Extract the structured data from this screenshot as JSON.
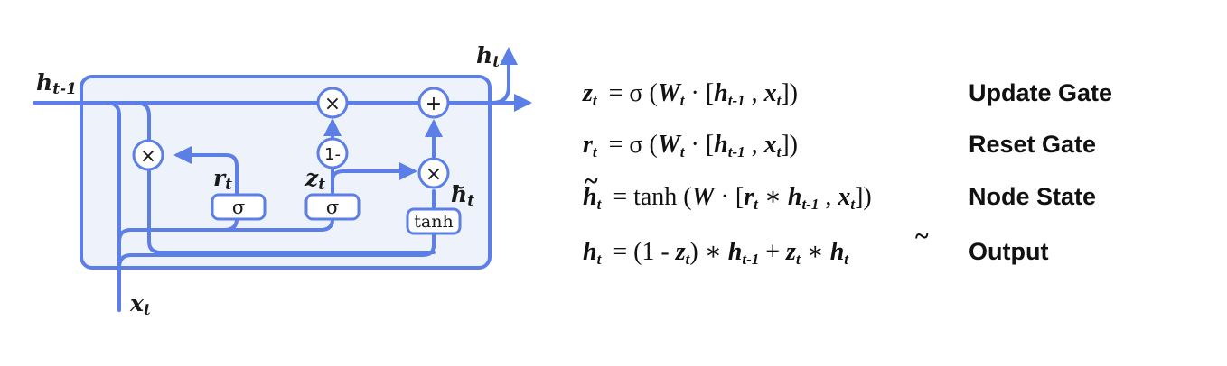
{
  "diagram": {
    "labels": {
      "h_prev": "h",
      "h_prev_sub": "t-1",
      "h_out": "h",
      "h_out_sub": "t",
      "x_in": "x",
      "x_in_sub": "t",
      "r": "r",
      "r_sub": "t",
      "z": "z",
      "z_sub": "t",
      "h_tilde": "h",
      "h_tilde_sub": "t",
      "tilde": "~"
    },
    "nodes": {
      "mult_reset": "×",
      "mult_update": "×",
      "plus": "+",
      "one_minus": "1-",
      "mult_candidate": "×",
      "sigma_r": "σ",
      "sigma_z": "σ",
      "tanh": "tanh"
    },
    "colors": {
      "line": "#5b7fe6",
      "cell_fill": "#eef2fb"
    }
  },
  "equations": [
    {
      "lhs": "z",
      "lhs_sub": "t",
      "parts": [
        "= σ (",
        "W",
        "t",
        " · [",
        "h",
        "t-1",
        " , ",
        "x",
        "t",
        "])"
      ],
      "gate": "Update Gate"
    },
    {
      "lhs": "r",
      "lhs_sub": "t",
      "parts": [
        "= σ (",
        "W",
        "t",
        " · [",
        "h",
        "t-1",
        " , ",
        "x",
        "t",
        "])"
      ],
      "gate": "Reset Gate"
    },
    {
      "lhs": "h",
      "lhs_sub": "t",
      "parts": [
        "= tanh (",
        "W",
        " · [",
        "r",
        "t",
        " ∗ ",
        "h",
        "t-1",
        " , ",
        "x",
        "t",
        "])"
      ],
      "gate": "Node State"
    },
    {
      "lhs": "h",
      "lhs_sub": "t",
      "parts": [
        "= (1 - ",
        "z",
        "t",
        ") ∗ ",
        "h",
        "t-1",
        " + ",
        "z",
        "t",
        " ∗ ",
        "h",
        "t"
      ],
      "gate": "Output"
    }
  ]
}
